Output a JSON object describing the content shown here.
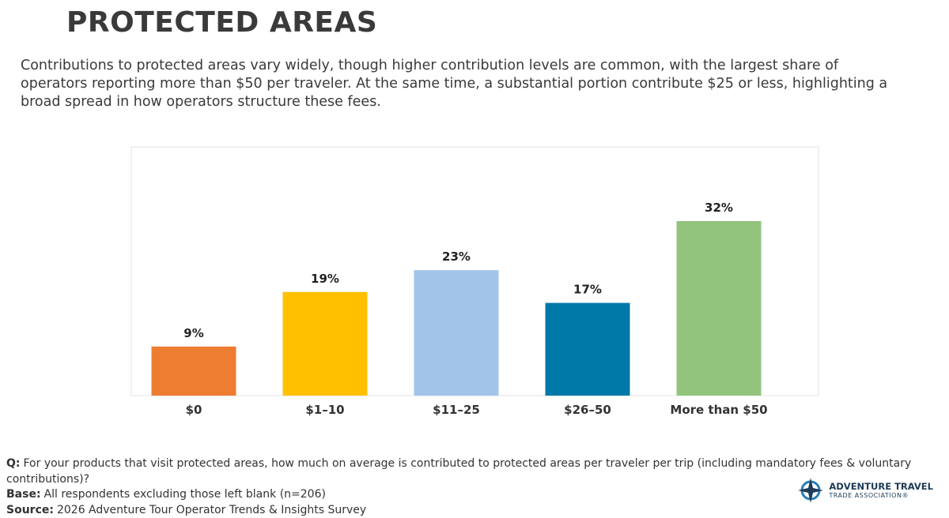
{
  "chart_data": {
    "type": "bar",
    "title": "PROTECTED AREAS",
    "subtitle": "Contributions to protected areas vary widely, though higher contribution levels are common, with the largest share of operators reporting more than $50 per traveler. At the same time, a substantial portion contribute $25 or less, highlighting a broad spread in how operators structure these fees.",
    "categories": [
      "$0",
      "$1–10",
      "$11–25",
      "$26–50",
      "More than $50"
    ],
    "values": [
      9,
      19,
      23,
      17,
      32
    ],
    "value_labels": [
      "9%",
      "19%",
      "23%",
      "17%",
      "32%"
    ],
    "colors": [
      "#ed7d31",
      "#ffc000",
      "#a2c4e8",
      "#0079a8",
      "#92c47d"
    ],
    "notes": [
      {
        "label": "Q:",
        "text": "For your products that visit protected areas, how much on average is contributed to protected areas per traveler per trip (including mandatory fees & voluntary contributions)?"
      },
      {
        "label": "Base:",
        "text": "All respondents excluding those left blank (n=206)"
      },
      {
        "label": "Source:",
        "text": "2026 Adventure Tour Operator Trends & Insights Survey"
      }
    ],
    "logo": {
      "line1": "ADVENTURE TRAVEL",
      "line2": "TRADE ASSOCIATION®"
    }
  }
}
